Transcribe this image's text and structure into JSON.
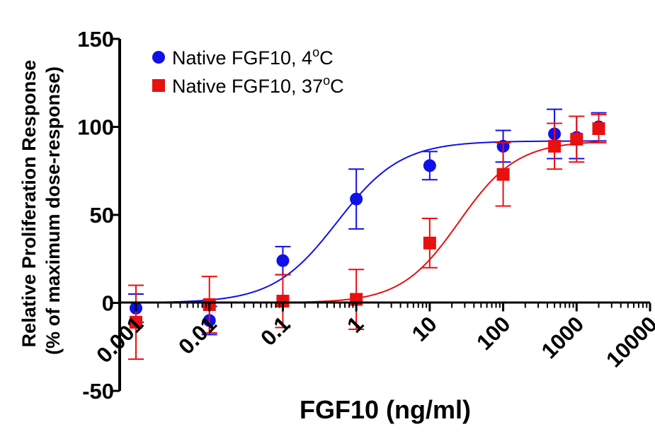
{
  "chart_data": {
    "type": "scatter",
    "xlabel": "FGF10 (ng/ml)",
    "ylabel_line1": "Relative Proliferation  Response",
    "ylabel_line2": "(% of maximum dose-response)",
    "x_scale": "log",
    "xlim": [
      0.0006,
      10000
    ],
    "ylim": [
      -50,
      150
    ],
    "x_ticks": [
      0.001,
      0.01,
      0.1,
      1,
      10,
      100,
      1000,
      10000
    ],
    "x_tick_labels": [
      "0.001",
      "0.01",
      "0.1",
      "1",
      "10",
      "100",
      "1000",
      "10000"
    ],
    "y_ticks": [
      -50,
      0,
      50,
      100,
      150
    ],
    "y_tick_labels": [
      "-50",
      "0",
      "50",
      "100",
      "150"
    ],
    "legend_position": "top-left",
    "series": [
      {
        "name": "Native FGF10, 4°C",
        "legend_main": "Native FGF10, 4",
        "legend_sup": "o",
        "legend_tail": "C",
        "marker": "circle",
        "color": "#1010e8",
        "x": [
          0.001,
          0.01,
          0.1,
          1,
          10,
          100,
          500,
          1000,
          2000
        ],
        "y": [
          -3,
          -10,
          24,
          59,
          78,
          89,
          96,
          94,
          100
        ],
        "err": [
          8,
          8,
          8,
          17,
          8,
          9,
          14,
          12,
          8
        ],
        "fit": {
          "bottom": 0,
          "top": 92,
          "ec50": 0.55,
          "hill": 1.0
        }
      },
      {
        "name": "Native FGF10, 37°C",
        "legend_main": "Native FGF10, 37",
        "legend_sup": "o",
        "legend_tail": "C",
        "marker": "square",
        "color": "#e81010",
        "x": [
          0.001,
          0.01,
          0.1,
          1,
          10,
          100,
          500,
          1000,
          2000
        ],
        "y": [
          -11,
          -1,
          1,
          2,
          34,
          73,
          89,
          93,
          99
        ],
        "err": [
          21,
          16,
          15,
          17,
          14,
          18,
          13,
          13,
          8
        ],
        "fit": {
          "bottom": 0,
          "top": 92,
          "ec50": 25,
          "hill": 1.1
        }
      }
    ]
  }
}
